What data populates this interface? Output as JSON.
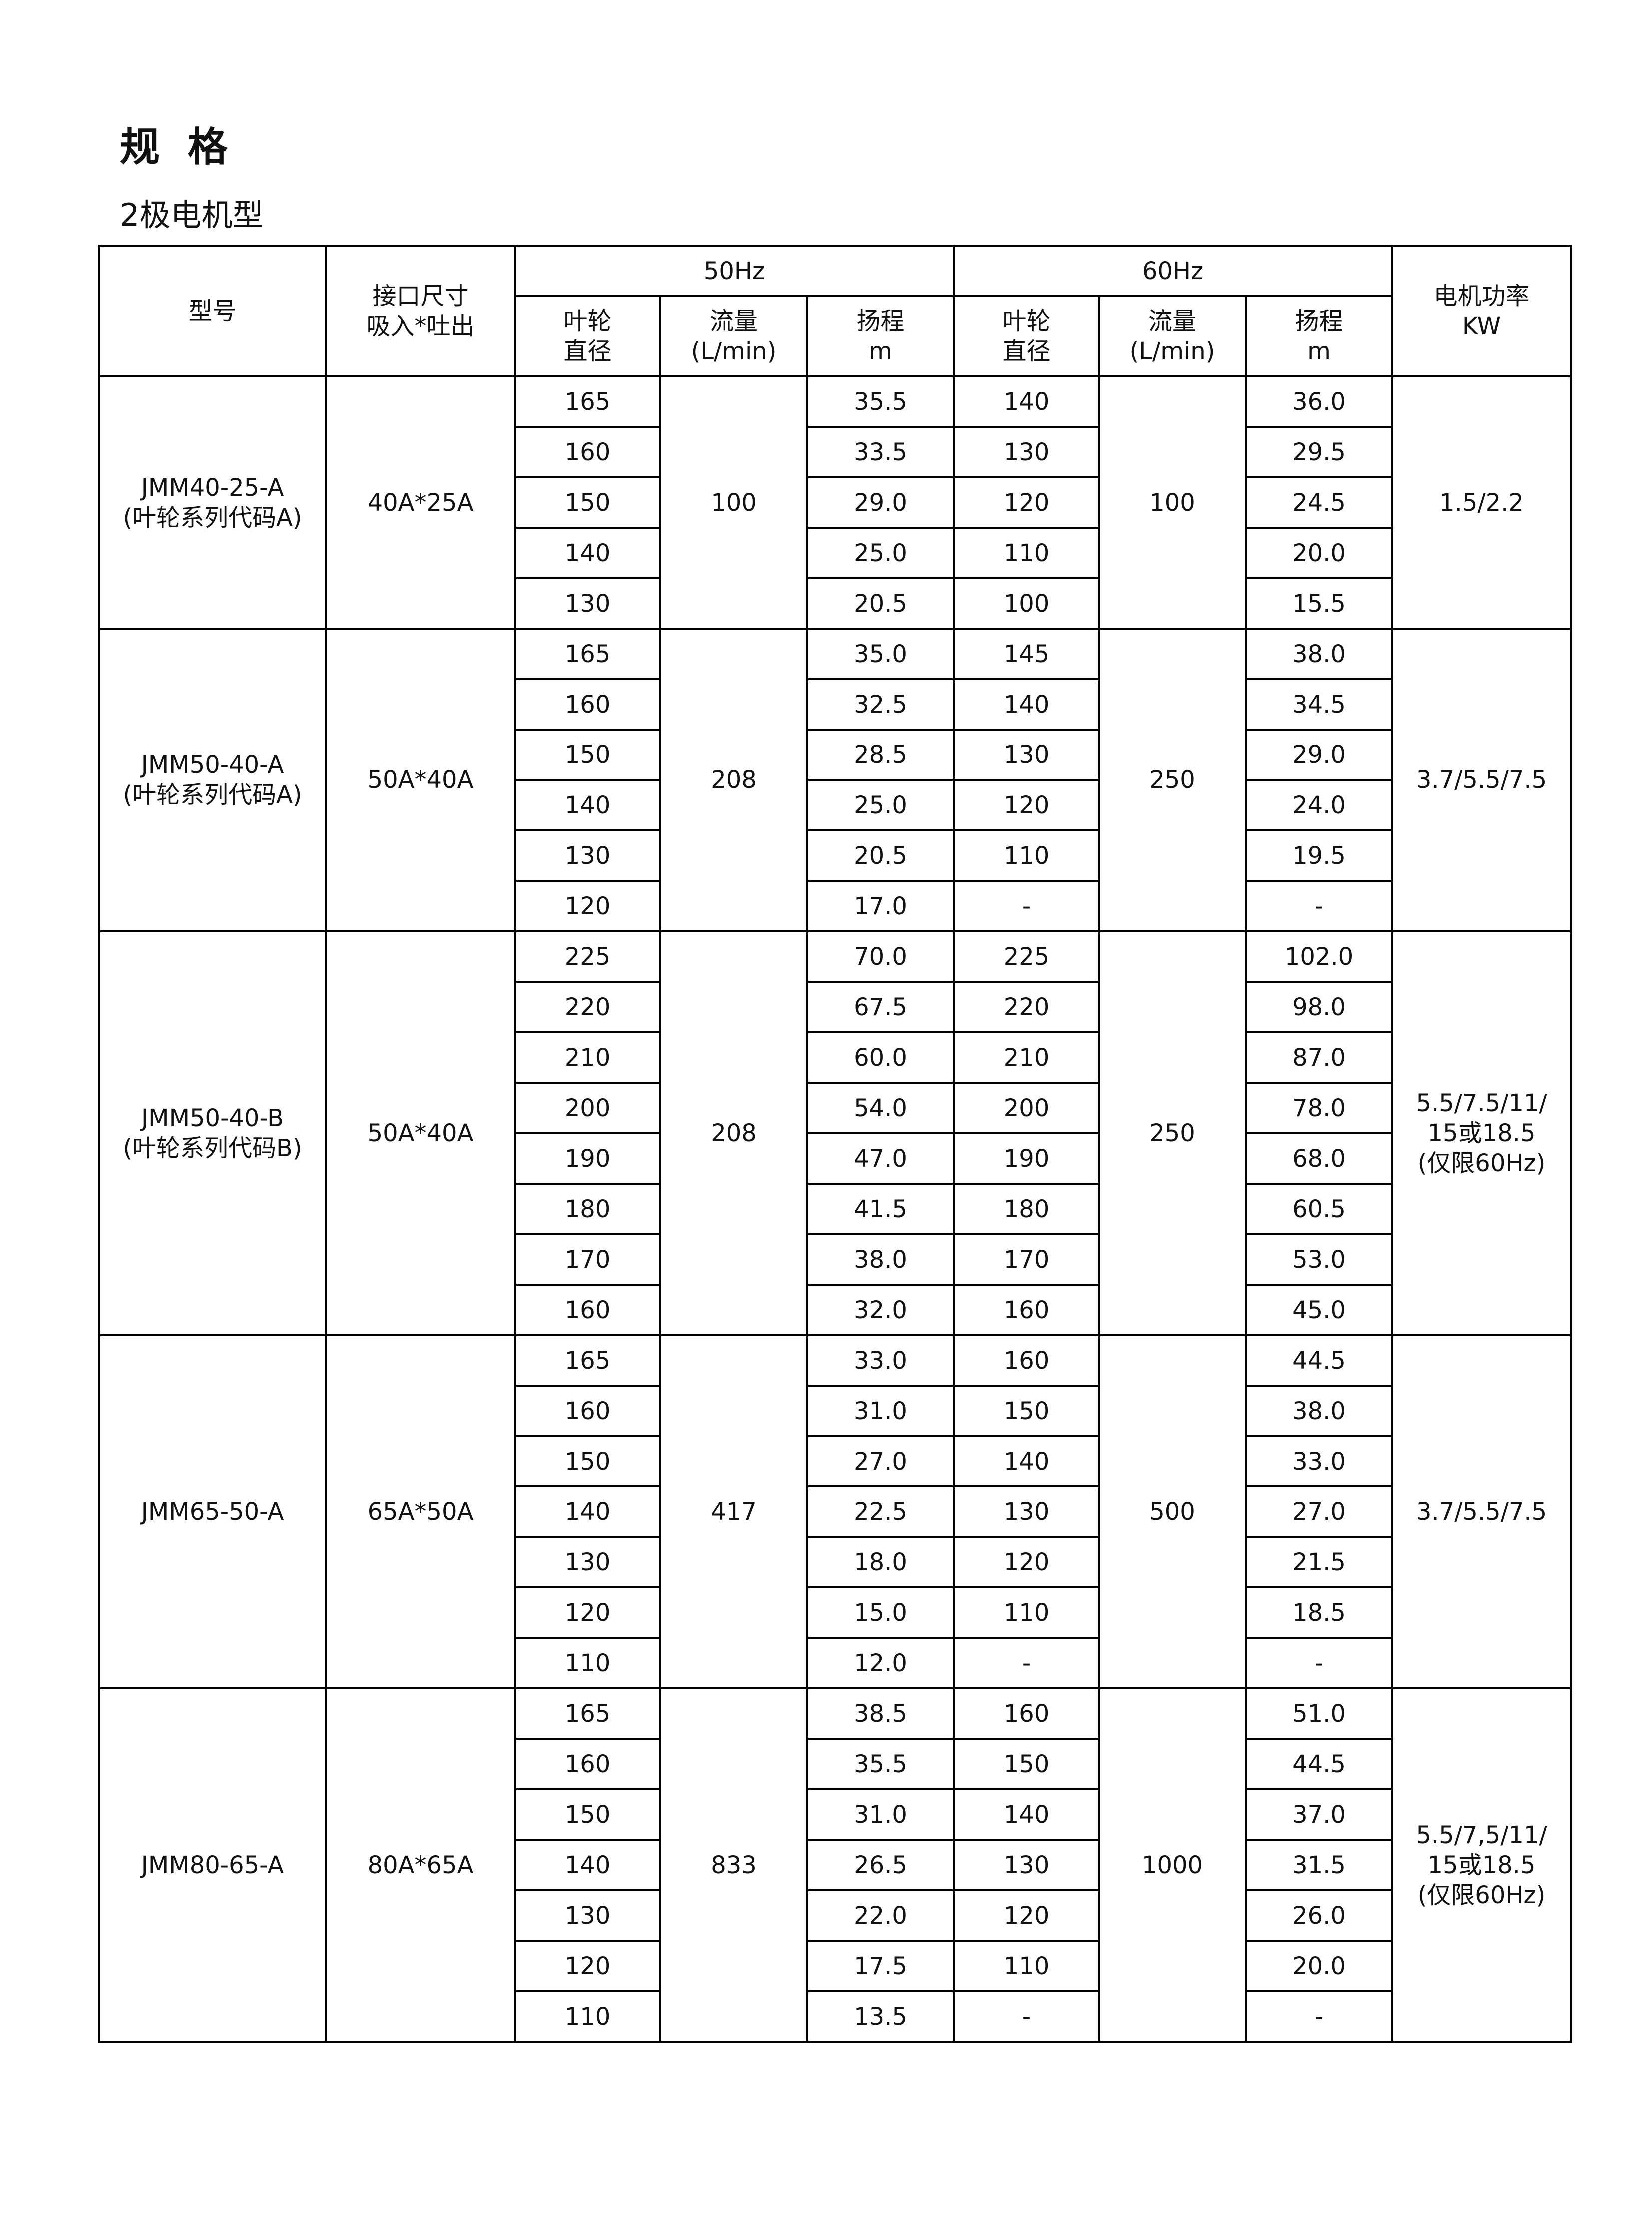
{
  "title": "规 格",
  "subtitle": "2极电机型",
  "header": {
    "model": "型号",
    "port": [
      "接口尺寸",
      "吸入*吐出"
    ],
    "hz50": "50Hz",
    "hz60": "60Hz",
    "power": [
      "电机功率",
      "KW"
    ],
    "impeller": [
      "叶轮",
      "直径"
    ],
    "flow": [
      "流量",
      "(L/min)"
    ],
    "head": [
      "扬程",
      "m"
    ]
  },
  "groups": [
    {
      "model": [
        "JMM40-25-A",
        "(叶轮系列代码A)"
      ],
      "port": "40A*25A",
      "flow50": "100",
      "flow60": "100",
      "power": [
        "1.5/2.2"
      ],
      "rows": [
        [
          "165",
          "35.5",
          "140",
          "36.0"
        ],
        [
          "160",
          "33.5",
          "130",
          "29.5"
        ],
        [
          "150",
          "29.0",
          "120",
          "24.5"
        ],
        [
          "140",
          "25.0",
          "110",
          "20.0"
        ],
        [
          "130",
          "20.5",
          "100",
          "15.5"
        ]
      ]
    },
    {
      "model": [
        "JMM50-40-A",
        "(叶轮系列代码A)"
      ],
      "port": "50A*40A",
      "flow50": "208",
      "flow60": "250",
      "power": [
        "3.7/5.5/7.5"
      ],
      "rows": [
        [
          "165",
          "35.0",
          "145",
          "38.0"
        ],
        [
          "160",
          "32.5",
          "140",
          "34.5"
        ],
        [
          "150",
          "28.5",
          "130",
          "29.0"
        ],
        [
          "140",
          "25.0",
          "120",
          "24.0"
        ],
        [
          "130",
          "20.5",
          "110",
          "19.5"
        ],
        [
          "120",
          "17.0",
          "-",
          "-"
        ]
      ]
    },
    {
      "model": [
        "JMM50-40-B",
        "(叶轮系列代码B)"
      ],
      "port": "50A*40A",
      "flow50": "208",
      "flow60": "250",
      "power": [
        "5.5/7.5/11/",
        "15或18.5",
        "(仅限60Hz)"
      ],
      "rows": [
        [
          "225",
          "70.0",
          "225",
          "102.0"
        ],
        [
          "220",
          "67.5",
          "220",
          "98.0"
        ],
        [
          "210",
          "60.0",
          "210",
          "87.0"
        ],
        [
          "200",
          "54.0",
          "200",
          "78.0"
        ],
        [
          "190",
          "47.0",
          "190",
          "68.0"
        ],
        [
          "180",
          "41.5",
          "180",
          "60.5"
        ],
        [
          "170",
          "38.0",
          "170",
          "53.0"
        ],
        [
          "160",
          "32.0",
          "160",
          "45.0"
        ]
      ]
    },
    {
      "model": [
        "JMM65-50-A"
      ],
      "port": "65A*50A",
      "flow50": "417",
      "flow60": "500",
      "power": [
        "3.7/5.5/7.5"
      ],
      "rows": [
        [
          "165",
          "33.0",
          "160",
          "44.5"
        ],
        [
          "160",
          "31.0",
          "150",
          "38.0"
        ],
        [
          "150",
          "27.0",
          "140",
          "33.0"
        ],
        [
          "140",
          "22.5",
          "130",
          "27.0"
        ],
        [
          "130",
          "18.0",
          "120",
          "21.5"
        ],
        [
          "120",
          "15.0",
          "110",
          "18.5"
        ],
        [
          "110",
          "12.0",
          "-",
          "-"
        ]
      ]
    },
    {
      "model": [
        "JMM80-65-A"
      ],
      "port": "80A*65A",
      "flow50": "833",
      "flow60": "1000",
      "power": [
        "5.5/7,5/11/",
        "15或18.5",
        "(仅限60Hz)"
      ],
      "rows": [
        [
          "165",
          "38.5",
          "160",
          "51.0"
        ],
        [
          "160",
          "35.5",
          "150",
          "44.5"
        ],
        [
          "150",
          "31.0",
          "140",
          "37.0"
        ],
        [
          "140",
          "26.5",
          "130",
          "31.5"
        ],
        [
          "130",
          "22.0",
          "120",
          "26.0"
        ],
        [
          "120",
          "17.5",
          "110",
          "20.0"
        ],
        [
          "110",
          "13.5",
          "-",
          "-"
        ]
      ]
    }
  ]
}
